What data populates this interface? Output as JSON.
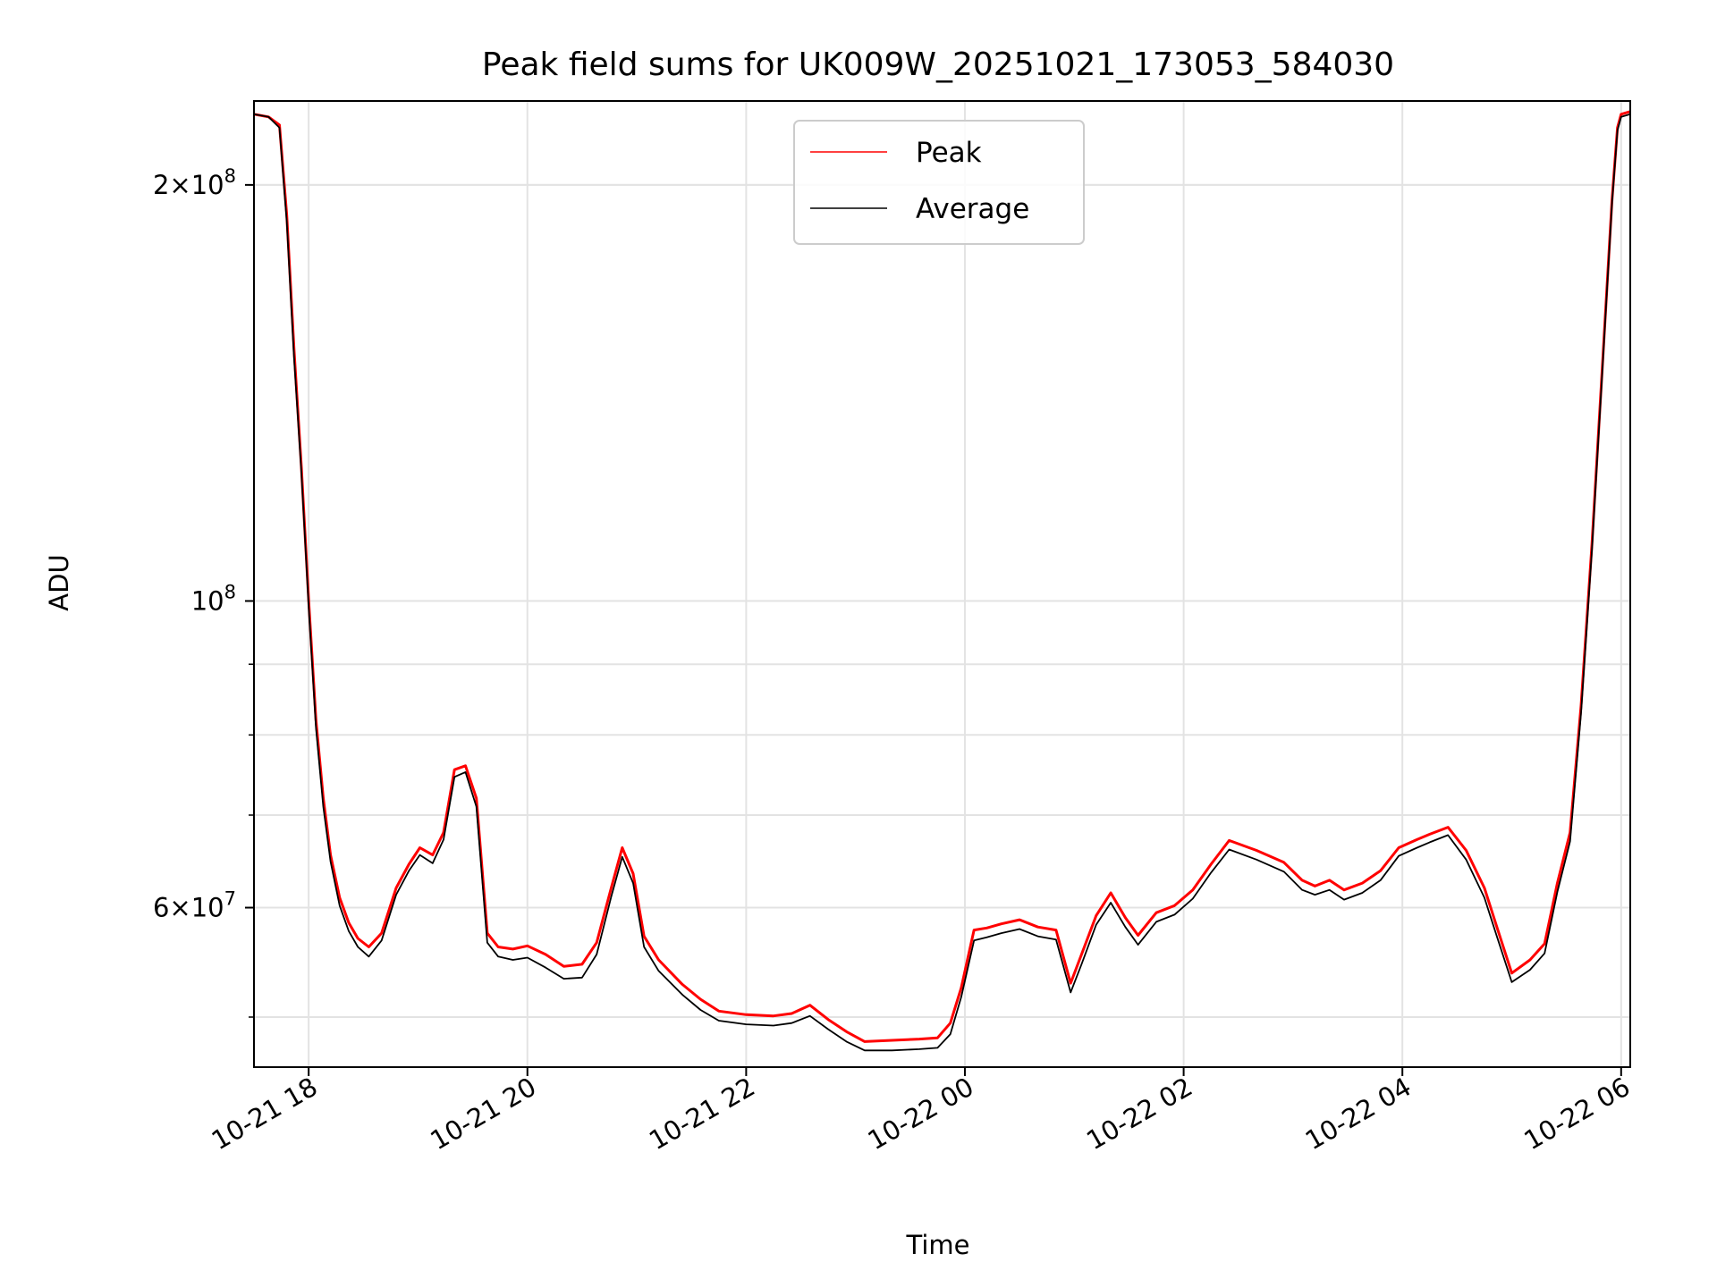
{
  "chart_data": {
    "type": "line",
    "title": "Peak field sums for UK009W_20251021_173053_584030",
    "xlabel": "Time",
    "ylabel": "ADU",
    "yscale": "log",
    "grid": true,
    "legend_position": "top-center",
    "xlim": [
      "2025-10-21 17:30",
      "2025-10-22 06:05"
    ],
    "ylim": [
      46000000,
      230000000
    ],
    "x_ticks": [
      {
        "value": "2025-10-21 18:00",
        "label": "10-21 18"
      },
      {
        "value": "2025-10-21 20:00",
        "label": "10-21 20"
      },
      {
        "value": "2025-10-21 22:00",
        "label": "10-21 22"
      },
      {
        "value": "2025-10-22 00:00",
        "label": "10-22 00"
      },
      {
        "value": "2025-10-22 02:00",
        "label": "10-22 02"
      },
      {
        "value": "2025-10-22 04:00",
        "label": "10-22 04"
      },
      {
        "value": "2025-10-22 06:00",
        "label": "10-22 06"
      }
    ],
    "y_major_ticks": [
      {
        "value": 100000000,
        "base": "10",
        "exp": "8"
      },
      {
        "value": 200000000,
        "mant": "2",
        "base": "10",
        "exp": "8"
      },
      {
        "value": 60000000,
        "mant": "6",
        "base": "10",
        "exp": "7"
      }
    ],
    "y_minor_ticks": [
      50000000,
      60000000,
      70000000,
      80000000,
      90000000,
      200000000
    ],
    "series": [
      {
        "name": "Peak",
        "color": "#ff0000",
        "x": [
          "2025-10-21 17:30",
          "2025-10-21 17:38",
          "2025-10-21 17:44",
          "2025-10-21 17:48",
          "2025-10-21 17:52",
          "2025-10-21 17:56",
          "2025-10-21 18:00",
          "2025-10-21 18:04",
          "2025-10-21 18:08",
          "2025-10-21 18:12",
          "2025-10-21 18:17",
          "2025-10-21 18:22",
          "2025-10-21 18:27",
          "2025-10-21 18:33",
          "2025-10-21 18:40",
          "2025-10-21 18:48",
          "2025-10-21 18:55",
          "2025-10-21 19:01",
          "2025-10-21 19:08",
          "2025-10-21 19:14",
          "2025-10-21 19:20",
          "2025-10-21 19:26",
          "2025-10-21 19:32",
          "2025-10-21 19:38",
          "2025-10-21 19:44",
          "2025-10-21 19:52",
          "2025-10-21 20:00",
          "2025-10-21 20:10",
          "2025-10-21 20:20",
          "2025-10-21 20:30",
          "2025-10-21 20:38",
          "2025-10-21 20:46",
          "2025-10-21 20:52",
          "2025-10-21 20:58",
          "2025-10-21 21:04",
          "2025-10-21 21:12",
          "2025-10-21 21:25",
          "2025-10-21 21:35",
          "2025-10-21 21:45",
          "2025-10-21 22:00",
          "2025-10-21 22:15",
          "2025-10-21 22:25",
          "2025-10-21 22:35",
          "2025-10-21 22:45",
          "2025-10-21 22:55",
          "2025-10-21 23:05",
          "2025-10-21 23:20",
          "2025-10-21 23:35",
          "2025-10-21 23:45",
          "2025-10-21 23:52",
          "2025-10-21 23:58",
          "2025-10-22 00:05",
          "2025-10-22 00:12",
          "2025-10-22 00:20",
          "2025-10-22 00:30",
          "2025-10-22 00:40",
          "2025-10-22 00:50",
          "2025-10-22 00:58",
          "2025-10-22 01:04",
          "2025-10-22 01:12",
          "2025-10-22 01:20",
          "2025-10-22 01:28",
          "2025-10-22 01:35",
          "2025-10-22 01:45",
          "2025-10-22 01:55",
          "2025-10-22 02:05",
          "2025-10-22 02:15",
          "2025-10-22 02:25",
          "2025-10-22 02:40",
          "2025-10-22 02:55",
          "2025-10-22 03:05",
          "2025-10-22 03:12",
          "2025-10-22 03:20",
          "2025-10-22 03:28",
          "2025-10-22 03:38",
          "2025-10-22 03:48",
          "2025-10-22 03:58",
          "2025-10-22 04:08",
          "2025-10-22 04:15",
          "2025-10-22 04:25",
          "2025-10-22 04:35",
          "2025-10-22 04:45",
          "2025-10-22 04:52",
          "2025-10-22 05:00",
          "2025-10-22 05:10",
          "2025-10-22 05:18",
          "2025-10-22 05:25",
          "2025-10-22 05:32",
          "2025-10-22 05:38",
          "2025-10-22 05:44",
          "2025-10-22 05:50",
          "2025-10-22 05:55",
          "2025-10-22 05:58",
          "2025-10-22 06:00",
          "2025-10-22 06:05"
        ],
        "values": [
          225000000,
          224000000,
          221000000,
          190000000,
          152000000,
          125000000,
          100000000,
          82000000,
          72000000,
          65500000,
          61000000,
          58500000,
          57000000,
          56200000,
          57500000,
          62000000,
          64500000,
          66300000,
          65500000,
          68000000,
          75500000,
          76000000,
          72000000,
          57500000,
          56200000,
          56000000,
          56300000,
          55500000,
          54400000,
          54600000,
          56600000,
          62000000,
          66300000,
          63500000,
          57200000,
          55000000,
          52800000,
          51500000,
          50500000,
          50200000,
          50100000,
          50300000,
          51000000,
          49800000,
          48800000,
          48000000,
          48100000,
          48200000,
          48300000,
          49500000,
          52500000,
          57800000,
          58000000,
          58400000,
          58800000,
          58100000,
          57800000,
          52900000,
          55500000,
          59200000,
          61500000,
          59000000,
          57300000,
          59500000,
          60200000,
          61800000,
          64500000,
          67100000,
          66000000,
          64700000,
          62800000,
          62200000,
          62800000,
          61800000,
          62500000,
          63800000,
          66300000,
          67200000,
          67800000,
          68600000,
          66000000,
          62000000,
          58000000,
          53800000,
          55000000,
          56500000,
          62500000,
          68000000,
          84000000,
          110000000,
          150000000,
          195000000,
          220000000,
          225000000,
          226000000
        ]
      },
      {
        "name": "Average",
        "color": "#000000",
        "x": [
          "2025-10-21 17:30",
          "2025-10-21 17:38",
          "2025-10-21 17:44",
          "2025-10-21 17:48",
          "2025-10-21 17:52",
          "2025-10-21 17:56",
          "2025-10-21 18:00",
          "2025-10-21 18:04",
          "2025-10-21 18:08",
          "2025-10-21 18:12",
          "2025-10-21 18:17",
          "2025-10-21 18:22",
          "2025-10-21 18:27",
          "2025-10-21 18:33",
          "2025-10-21 18:40",
          "2025-10-21 18:48",
          "2025-10-21 18:55",
          "2025-10-21 19:01",
          "2025-10-21 19:08",
          "2025-10-21 19:14",
          "2025-10-21 19:20",
          "2025-10-21 19:26",
          "2025-10-21 19:32",
          "2025-10-21 19:38",
          "2025-10-21 19:44",
          "2025-10-21 19:52",
          "2025-10-21 20:00",
          "2025-10-21 20:10",
          "2025-10-21 20:20",
          "2025-10-21 20:30",
          "2025-10-21 20:38",
          "2025-10-21 20:46",
          "2025-10-21 20:52",
          "2025-10-21 20:58",
          "2025-10-21 21:04",
          "2025-10-21 21:12",
          "2025-10-21 21:25",
          "2025-10-21 21:35",
          "2025-10-21 21:45",
          "2025-10-21 22:00",
          "2025-10-21 22:15",
          "2025-10-21 22:25",
          "2025-10-21 22:35",
          "2025-10-21 22:45",
          "2025-10-21 22:55",
          "2025-10-21 23:05",
          "2025-10-21 23:20",
          "2025-10-21 23:35",
          "2025-10-21 23:45",
          "2025-10-21 23:52",
          "2025-10-21 23:58",
          "2025-10-22 00:05",
          "2025-10-22 00:12",
          "2025-10-22 00:20",
          "2025-10-22 00:30",
          "2025-10-22 00:40",
          "2025-10-22 00:50",
          "2025-10-22 00:58",
          "2025-10-22 01:04",
          "2025-10-22 01:12",
          "2025-10-22 01:20",
          "2025-10-22 01:28",
          "2025-10-22 01:35",
          "2025-10-22 01:45",
          "2025-10-22 01:55",
          "2025-10-22 02:05",
          "2025-10-22 02:15",
          "2025-10-22 02:25",
          "2025-10-22 02:40",
          "2025-10-22 02:55",
          "2025-10-22 03:05",
          "2025-10-22 03:12",
          "2025-10-22 03:20",
          "2025-10-22 03:28",
          "2025-10-22 03:38",
          "2025-10-22 03:48",
          "2025-10-22 03:58",
          "2025-10-22 04:08",
          "2025-10-22 04:15",
          "2025-10-22 04:25",
          "2025-10-22 04:35",
          "2025-10-22 04:45",
          "2025-10-22 04:52",
          "2025-10-22 05:00",
          "2025-10-22 05:10",
          "2025-10-22 05:18",
          "2025-10-22 05:25",
          "2025-10-22 05:32",
          "2025-10-22 05:38",
          "2025-10-22 05:44",
          "2025-10-22 05:50",
          "2025-10-22 05:55",
          "2025-10-22 05:58",
          "2025-10-22 06:00",
          "2025-10-22 06:05"
        ],
        "values": [
          225000000,
          224000000,
          220000000,
          188000000,
          150000000,
          124000000,
          99000000,
          81000000,
          71000000,
          64800000,
          60200000,
          57700000,
          56200000,
          55300000,
          56800000,
          61300000,
          63800000,
          65500000,
          64600000,
          67200000,
          74600000,
          75200000,
          71000000,
          56600000,
          55300000,
          55000000,
          55200000,
          54300000,
          53300000,
          53400000,
          55500000,
          61100000,
          65300000,
          62500000,
          56200000,
          54000000,
          51900000,
          50600000,
          49700000,
          49400000,
          49300000,
          49500000,
          50100000,
          49000000,
          48000000,
          47300000,
          47300000,
          47400000,
          47500000,
          48600000,
          51700000,
          56800000,
          57100000,
          57500000,
          57900000,
          57200000,
          56900000,
          52100000,
          54600000,
          58300000,
          60500000,
          58100000,
          56400000,
          58600000,
          59300000,
          60900000,
          63600000,
          66100000,
          65000000,
          63700000,
          61800000,
          61300000,
          61800000,
          60800000,
          61500000,
          62800000,
          65400000,
          66300000,
          66900000,
          67700000,
          65000000,
          61000000,
          57100000,
          53000000,
          54100000,
          55600000,
          61600000,
          67000000,
          83000000,
          109000000,
          149000000,
          194000000,
          219000000,
          224000000,
          225000000
        ]
      }
    ]
  }
}
